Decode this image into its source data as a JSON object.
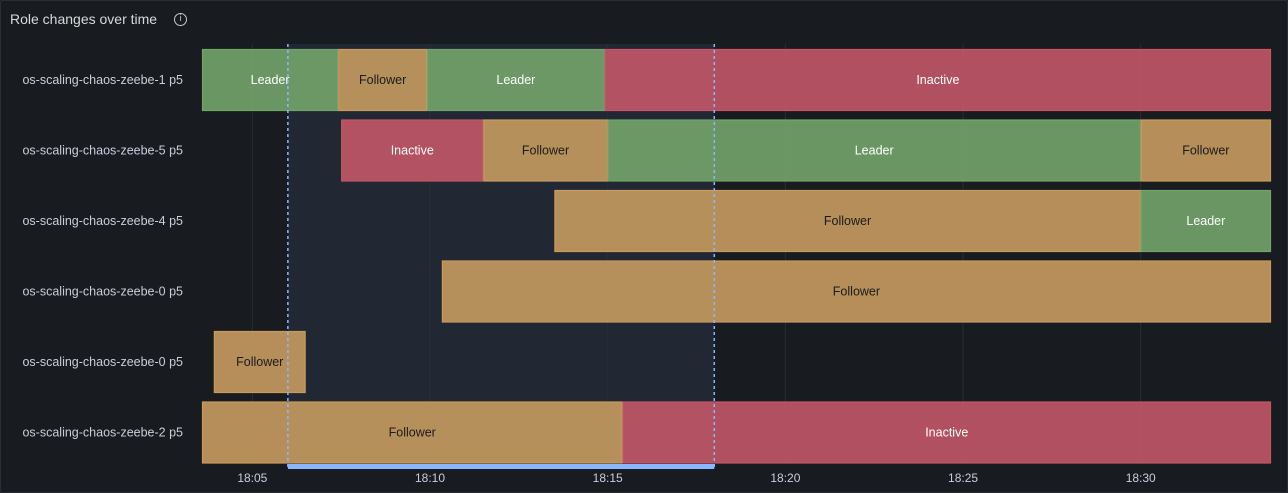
{
  "panel": {
    "title": "Role changes over time",
    "info_icon": "info-circle-icon"
  },
  "colors": {
    "Leader": "#73a46a",
    "Follower": "#c79b5f",
    "Inactive": "#c25767",
    "selection": "#8ab8ff"
  },
  "chart_data": {
    "type": "state-timeline",
    "title": "Role changes over time",
    "x_range": [
      "18:03:35",
      "18:33:40"
    ],
    "x_ticks": [
      "18:05",
      "18:10",
      "18:15",
      "18:20",
      "18:25",
      "18:30"
    ],
    "grid": true,
    "selection": {
      "from": "18:06:00",
      "to": "18:18:00"
    },
    "rows": [
      {
        "label": "os-scaling-chaos-zeebe-1 p5",
        "segments": [
          {
            "state": "Leader",
            "start": "18:03:35",
            "end": "18:07:25"
          },
          {
            "state": "Follower",
            "start": "18:07:25",
            "end": "18:09:55"
          },
          {
            "state": "Leader",
            "start": "18:09:55",
            "end": "18:14:55"
          },
          {
            "state": "Inactive",
            "start": "18:14:55",
            "end": "18:33:40"
          }
        ]
      },
      {
        "label": "os-scaling-chaos-zeebe-5 p5",
        "segments": [
          {
            "state": "Inactive",
            "start": "18:07:30",
            "end": "18:11:30"
          },
          {
            "state": "Follower",
            "start": "18:11:30",
            "end": "18:15:00"
          },
          {
            "state": "Leader",
            "start": "18:15:00",
            "end": "18:30:00"
          },
          {
            "state": "Follower",
            "start": "18:30:00",
            "end": "18:33:40"
          }
        ]
      },
      {
        "label": "os-scaling-chaos-zeebe-4 p5",
        "segments": [
          {
            "state": "Follower",
            "start": "18:13:30",
            "end": "18:30:00"
          },
          {
            "state": "Leader",
            "start": "18:30:00",
            "end": "18:33:40"
          }
        ]
      },
      {
        "label": "os-scaling-chaos-zeebe-0 p5",
        "segments": [
          {
            "state": "Follower",
            "start": "18:10:20",
            "end": "18:33:40"
          }
        ]
      },
      {
        "label": "os-scaling-chaos-zeebe-0 p5",
        "segments": [
          {
            "state": "Follower",
            "start": "18:03:55",
            "end": "18:06:30"
          }
        ]
      },
      {
        "label": "os-scaling-chaos-zeebe-2 p5",
        "segments": [
          {
            "state": "Follower",
            "start": "18:03:35",
            "end": "18:15:25"
          },
          {
            "state": "Inactive",
            "start": "18:15:25",
            "end": "18:33:40"
          }
        ]
      }
    ]
  }
}
